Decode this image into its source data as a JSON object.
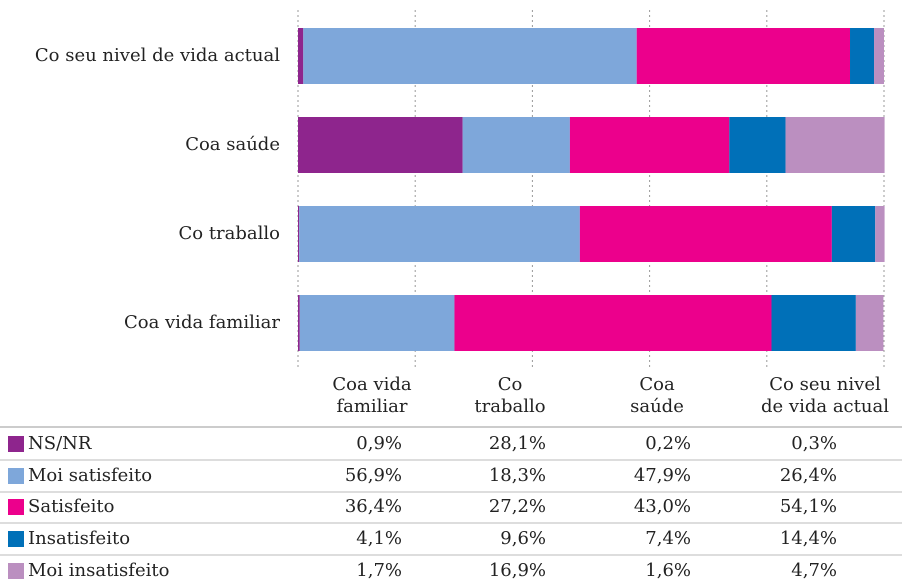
{
  "chart_data": {
    "type": "stacked-bar-horizontal",
    "y_labels": [
      "Co seu nivel de vida actual",
      "Coa saúde",
      "Co traballo",
      "Coa vida familiar"
    ],
    "categories": [
      "Coa vida familiar",
      "Co traballo",
      "Coa saúde",
      "Co seu nivel de vida actual"
    ],
    "series": [
      {
        "name": "NS/NR",
        "color": "#8e258d",
        "values": [
          0.9,
          28.1,
          0.2,
          0.3
        ],
        "value_labels": [
          "0,9%",
          "28,1%",
          "0,2%",
          "0,3%"
        ]
      },
      {
        "name": "Moi satisfeito",
        "color": "#7ea7da",
        "values": [
          56.9,
          18.3,
          47.9,
          26.4
        ],
        "value_labels": [
          "56,9%",
          "18,3%",
          "47,9%",
          "26,4%"
        ]
      },
      {
        "name": "Satisfeito",
        "color": "#ec008c",
        "values": [
          36.4,
          27.2,
          43.0,
          54.1
        ],
        "value_labels": [
          "36,4%",
          "27,2%",
          "43,0%",
          "54,1%"
        ]
      },
      {
        "name": "Insatisfeito",
        "color": "#0070b8",
        "values": [
          4.1,
          9.6,
          7.4,
          14.4
        ],
        "value_labels": [
          "4,1%",
          "9,6%",
          "7,4%",
          "14,4%"
        ]
      },
      {
        "name": "Moi insatisfeito",
        "color": "#bb8fc0",
        "values": [
          1.7,
          16.9,
          1.6,
          4.7
        ],
        "value_labels": [
          "1,7%",
          "16,9%",
          "1,6%",
          "4,7%"
        ]
      }
    ],
    "xlim": [
      0,
      100
    ],
    "xticks": [
      0,
      20,
      40,
      60,
      80,
      100
    ],
    "grid": true
  }
}
